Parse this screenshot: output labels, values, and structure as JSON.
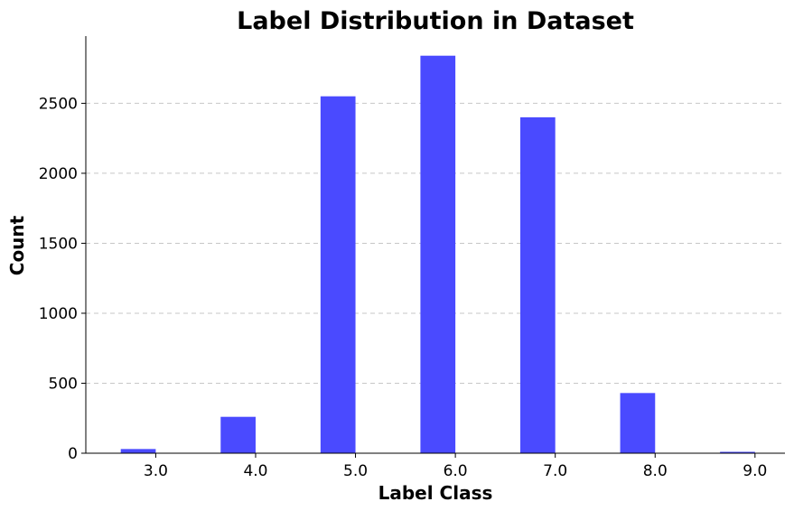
{
  "chart_data": {
    "type": "bar",
    "title": "Label Distribution in Dataset",
    "xlabel": "Label Class",
    "ylabel": "Count",
    "categories": [
      "3.0",
      "4.0",
      "5.0",
      "6.0",
      "7.0",
      "8.0",
      "9.0"
    ],
    "x": [
      3.0,
      4.0,
      5.0,
      6.0,
      7.0,
      8.0,
      9.0
    ],
    "values": [
      30,
      260,
      2550,
      2840,
      2400,
      430,
      10
    ],
    "xlim": [
      2.3,
      9.3
    ],
    "ylim": [
      0,
      2980
    ],
    "yticks": [
      0,
      500,
      1000,
      1500,
      2000,
      2500
    ],
    "ytick_labels": [
      "0",
      "500",
      "1000",
      "1500",
      "2000",
      "2500"
    ],
    "grid": "y-dashed",
    "bar_color": "#4a4aff"
  }
}
